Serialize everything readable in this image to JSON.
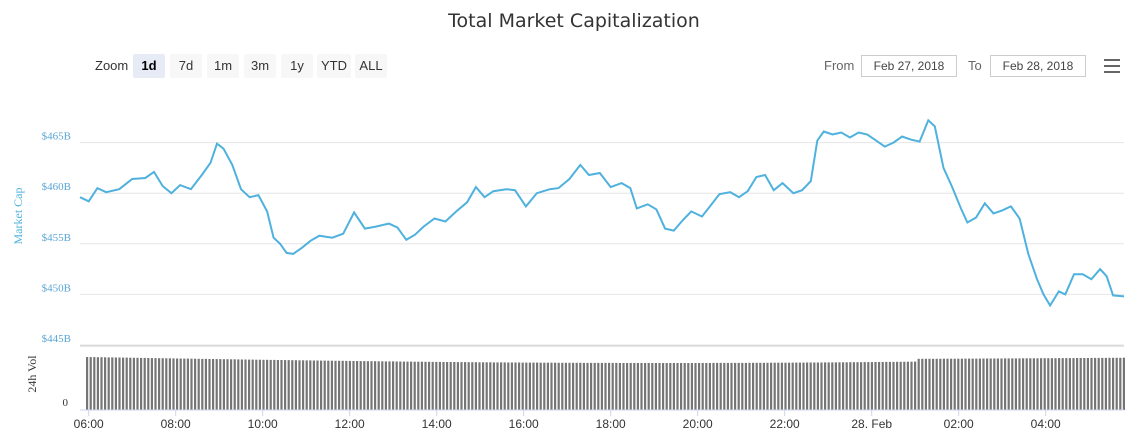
{
  "chart_data": {
    "type": "line",
    "title": "Total Market Capitalization",
    "ylabel": "Market Cap",
    "ylabel_volume": "24h Vol",
    "y_ticks": [
      "$445B",
      "$450B",
      "$455B",
      "$460B",
      "$465B"
    ],
    "y_tick_values": [
      445,
      450,
      455,
      460,
      465
    ],
    "ylim": [
      445,
      470
    ],
    "volume_ticks": [
      "0"
    ],
    "x_ticks": [
      "06:00",
      "08:00",
      "10:00",
      "12:00",
      "14:00",
      "16:00",
      "18:00",
      "20:00",
      "22:00",
      "28. Feb",
      "02:00",
      "04:00"
    ],
    "x_tick_hours": [
      6,
      8,
      10,
      12,
      14,
      16,
      18,
      20,
      22,
      24,
      26,
      28
    ],
    "xlim_hours": [
      5.8,
      29.8
    ],
    "grid": true,
    "colors": {
      "line": "#4fb1dd",
      "volume": "#757575",
      "grid": "#e6e6e6",
      "tick_label": "#5aa5d6"
    },
    "series": [
      {
        "values": [
          [
            5.8,
            459.6
          ],
          [
            6.0,
            459.2
          ],
          [
            6.2,
            460.5
          ],
          [
            6.4,
            460.1
          ],
          [
            6.7,
            460.4
          ],
          [
            7.0,
            461.4
          ],
          [
            7.3,
            461.5
          ],
          [
            7.5,
            462.1
          ],
          [
            7.7,
            460.7
          ],
          [
            7.9,
            460.0
          ],
          [
            8.1,
            460.8
          ],
          [
            8.35,
            460.4
          ],
          [
            8.6,
            461.8
          ],
          [
            8.8,
            463.0
          ],
          [
            8.95,
            464.9
          ],
          [
            9.1,
            464.4
          ],
          [
            9.3,
            462.8
          ],
          [
            9.5,
            460.4
          ],
          [
            9.7,
            459.6
          ],
          [
            9.9,
            459.8
          ],
          [
            10.1,
            458.2
          ],
          [
            10.25,
            455.6
          ],
          [
            10.4,
            455.0
          ],
          [
            10.55,
            454.1
          ],
          [
            10.7,
            454.0
          ],
          [
            10.9,
            454.6
          ],
          [
            11.1,
            455.3
          ],
          [
            11.3,
            455.8
          ],
          [
            11.6,
            455.6
          ],
          [
            11.85,
            456.0
          ],
          [
            12.1,
            458.1
          ],
          [
            12.35,
            456.5
          ],
          [
            12.6,
            456.7
          ],
          [
            12.9,
            457.0
          ],
          [
            13.1,
            456.6
          ],
          [
            13.3,
            455.4
          ],
          [
            13.5,
            455.9
          ],
          [
            13.7,
            456.7
          ],
          [
            13.95,
            457.5
          ],
          [
            14.2,
            457.2
          ],
          [
            14.45,
            458.2
          ],
          [
            14.7,
            459.1
          ],
          [
            14.9,
            460.6
          ],
          [
            15.1,
            459.6
          ],
          [
            15.3,
            460.2
          ],
          [
            15.6,
            460.4
          ],
          [
            15.8,
            460.3
          ],
          [
            16.05,
            458.7
          ],
          [
            16.3,
            460.0
          ],
          [
            16.6,
            460.4
          ],
          [
            16.8,
            460.5
          ],
          [
            17.05,
            461.4
          ],
          [
            17.3,
            462.8
          ],
          [
            17.5,
            461.8
          ],
          [
            17.75,
            462.0
          ],
          [
            18.0,
            460.6
          ],
          [
            18.25,
            461.0
          ],
          [
            18.45,
            460.5
          ],
          [
            18.6,
            458.5
          ],
          [
            18.85,
            458.9
          ],
          [
            19.05,
            458.4
          ],
          [
            19.25,
            456.5
          ],
          [
            19.45,
            456.3
          ],
          [
            19.65,
            457.3
          ],
          [
            19.85,
            458.2
          ],
          [
            20.1,
            457.7
          ],
          [
            20.3,
            458.8
          ],
          [
            20.5,
            459.9
          ],
          [
            20.75,
            460.1
          ],
          [
            20.95,
            459.6
          ],
          [
            21.15,
            460.2
          ],
          [
            21.35,
            461.6
          ],
          [
            21.55,
            461.8
          ],
          [
            21.75,
            460.3
          ],
          [
            21.95,
            461.0
          ],
          [
            22.2,
            460.0
          ],
          [
            22.4,
            460.3
          ],
          [
            22.6,
            461.2
          ],
          [
            22.75,
            465.2
          ],
          [
            22.9,
            466.1
          ],
          [
            23.1,
            465.8
          ],
          [
            23.3,
            466.0
          ],
          [
            23.5,
            465.5
          ],
          [
            23.7,
            466.0
          ],
          [
            23.9,
            465.8
          ],
          [
            24.1,
            465.2
          ],
          [
            24.3,
            464.6
          ],
          [
            24.5,
            465.0
          ],
          [
            24.7,
            465.6
          ],
          [
            24.9,
            465.3
          ],
          [
            25.1,
            465.1
          ],
          [
            25.3,
            467.2
          ],
          [
            25.45,
            466.6
          ],
          [
            25.65,
            462.5
          ],
          [
            25.85,
            460.6
          ],
          [
            26.05,
            458.5
          ],
          [
            26.2,
            457.1
          ],
          [
            26.4,
            457.6
          ],
          [
            26.6,
            459.0
          ],
          [
            26.8,
            458.0
          ],
          [
            27.0,
            458.3
          ],
          [
            27.2,
            458.7
          ],
          [
            27.4,
            457.5
          ],
          [
            27.6,
            454.0
          ],
          [
            27.8,
            451.5
          ],
          [
            27.95,
            450.0
          ],
          [
            28.1,
            448.9
          ],
          [
            28.3,
            450.3
          ],
          [
            28.45,
            450.0
          ],
          [
            28.65,
            452.0
          ],
          [
            28.85,
            452.0
          ],
          [
            29.05,
            451.5
          ],
          [
            29.25,
            452.5
          ],
          [
            29.4,
            451.8
          ],
          [
            29.55,
            449.9
          ],
          [
            29.8,
            449.8
          ]
        ]
      }
    ]
  },
  "rangeSelector": {
    "zoom_label": "Zoom",
    "buttons": [
      "1d",
      "7d",
      "1m",
      "3m",
      "1y",
      "YTD",
      "ALL"
    ],
    "active_index": 0,
    "from_label": "From",
    "from_value": "Feb 27, 2018",
    "to_label": "To",
    "to_value": "Feb 28, 2018"
  },
  "menu": {
    "icon": "hamburger-menu-icon"
  }
}
